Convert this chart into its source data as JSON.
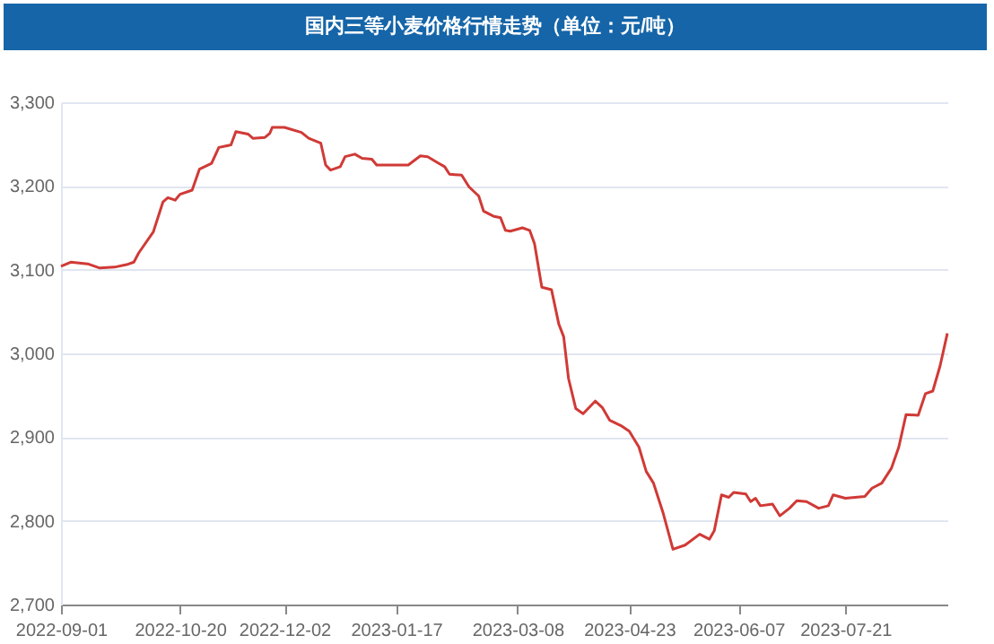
{
  "chart_data": {
    "type": "line",
    "title": "国内三等小麦价格行情走势（单位：元/吨）",
    "x": [
      "2022-09-01",
      "2022-09-05",
      "2022-09-12",
      "2022-09-17",
      "2022-09-23",
      "2022-09-28",
      "2022-10-01",
      "2022-10-03",
      "2022-10-09",
      "2022-10-13",
      "2022-10-15",
      "2022-10-18",
      "2022-10-20",
      "2022-10-25",
      "2022-10-28",
      "2022-11-02",
      "2022-11-05",
      "2022-11-10",
      "2022-11-12",
      "2022-11-17",
      "2022-11-19",
      "2022-11-24",
      "2022-11-26",
      "2022-11-27",
      "2022-12-02",
      "2022-12-09",
      "2022-12-12",
      "2022-12-17",
      "2022-12-19",
      "2022-12-21",
      "2022-12-25",
      "2022-12-27",
      "2022-12-31",
      "2023-01-03",
      "2023-01-07",
      "2023-01-09",
      "2023-01-17",
      "2023-01-22",
      "2023-01-27",
      "2023-01-30",
      "2023-02-03",
      "2023-02-06",
      "2023-02-08",
      "2023-02-13",
      "2023-02-16",
      "2023-02-20",
      "2023-02-22",
      "2023-02-26",
      "2023-03-01",
      "2023-03-03",
      "2023-03-05",
      "2023-03-10",
      "2023-03-13",
      "2023-03-15",
      "2023-03-18",
      "2023-03-22",
      "2023-03-25",
      "2023-03-27",
      "2023-03-29",
      "2023-04-01",
      "2023-04-04",
      "2023-04-09",
      "2023-04-12",
      "2023-04-15",
      "2023-04-20",
      "2023-04-23",
      "2023-04-27",
      "2023-04-30",
      "2023-05-03",
      "2023-05-07",
      "2023-05-11",
      "2023-05-16",
      "2023-05-22",
      "2023-05-26",
      "2023-05-28",
      "2023-05-31",
      "2023-06-03",
      "2023-06-05",
      "2023-06-10",
      "2023-06-12",
      "2023-06-14",
      "2023-06-16",
      "2023-06-21",
      "2023-06-24",
      "2023-06-28",
      "2023-07-01",
      "2023-07-05",
      "2023-07-10",
      "2023-07-14",
      "2023-07-16",
      "2023-07-21",
      "2023-07-29",
      "2023-08-01",
      "2023-08-05",
      "2023-08-09",
      "2023-08-12",
      "2023-08-15",
      "2023-08-20",
      "2023-08-23",
      "2023-08-26",
      "2023-08-29",
      "2023-09-01"
    ],
    "series": [
      {
        "color": "#d03a36",
        "values": [
          3104,
          3109,
          3107,
          3102,
          3103,
          3106,
          3109,
          3120,
          3145,
          3181,
          3186,
          3183,
          3190,
          3195,
          3220,
          3227,
          3246,
          3249,
          3265,
          3262,
          3257,
          3258,
          3263,
          3270,
          3270,
          3264,
          3257,
          3251,
          3225,
          3219,
          3223,
          3235,
          3238,
          3233,
          3232,
          3225,
          3225,
          3225,
          3236,
          3235,
          3228,
          3223,
          3214,
          3213,
          3199,
          3188,
          3170,
          3164,
          3162,
          3147,
          3146,
          3150,
          3147,
          3131,
          3079,
          3076,
          3035,
          3020,
          2970,
          2934,
          2928,
          2943,
          2935,
          2920,
          2913,
          2907,
          2888,
          2859,
          2845,
          2809,
          2766,
          2771,
          2784,
          2778,
          2788,
          2831,
          2828,
          2834,
          2832,
          2823,
          2827,
          2818,
          2820,
          2806,
          2815,
          2824,
          2823,
          2815,
          2818,
          2831,
          2827,
          2829,
          2839,
          2845,
          2863,
          2888,
          2927,
          2926,
          2952,
          2955,
          2985,
          3024
        ]
      }
    ],
    "xlim": [
      "2022-09-01",
      "2023-09-01"
    ],
    "xticks": [
      "2022-09-01",
      "2022-10-20",
      "2022-12-02",
      "2023-01-17",
      "2023-03-08",
      "2023-04-23",
      "2023-06-07",
      "2023-07-21"
    ],
    "ylim": [
      2700,
      3300
    ],
    "yticks": [
      {
        "value": 2700,
        "label": "2,700"
      },
      {
        "value": 2800,
        "label": "2,800"
      },
      {
        "value": 2900,
        "label": "2,900"
      },
      {
        "value": 3000,
        "label": "3,000"
      },
      {
        "value": 3100,
        "label": "3,100"
      },
      {
        "value": 3200,
        "label": "3,200"
      },
      {
        "value": 3300,
        "label": "3,300"
      }
    ],
    "grid": "y",
    "legend": false,
    "marker": "none",
    "line_style": "solid"
  }
}
